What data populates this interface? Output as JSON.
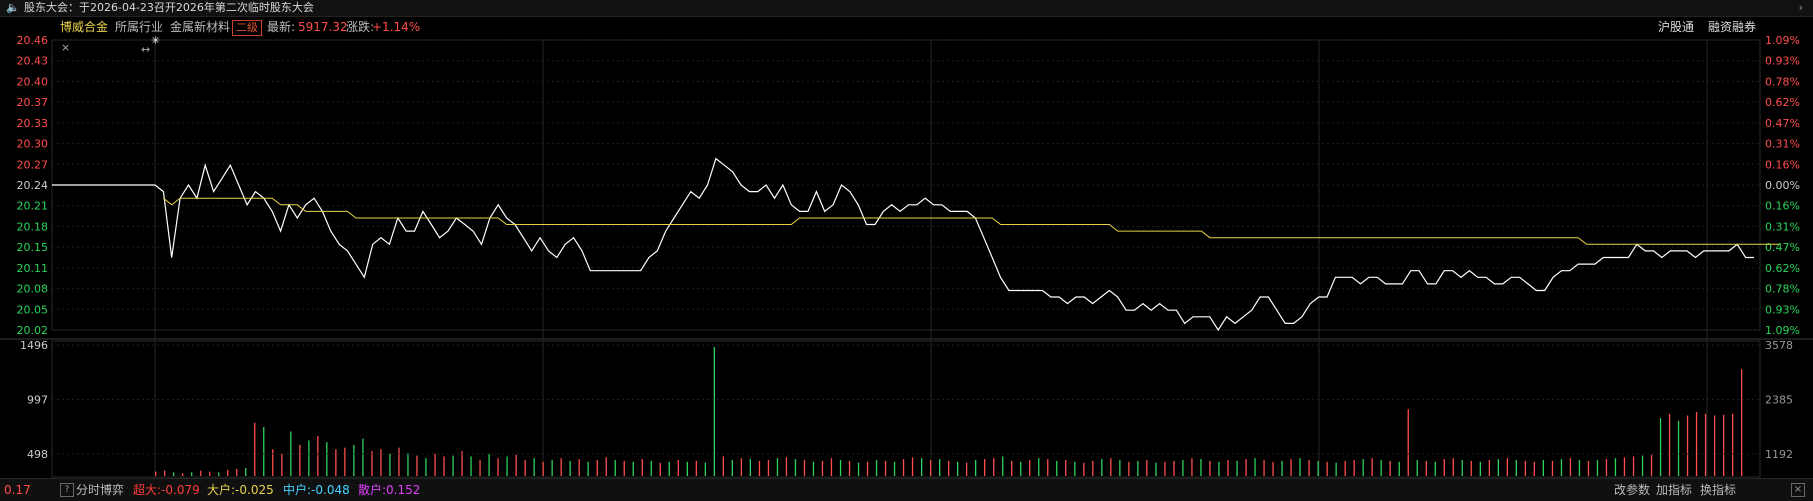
{
  "notice": {
    "icon": "speaker-icon",
    "text": "股东大会：于2026-04-23召开2026年第二次临时股东大会",
    "more_icon": "chevron-right-icon"
  },
  "info_bar": {
    "stock_name": "博威合金",
    "industry_label": "所属行业",
    "sector": "金属新材料",
    "sector_grade": "二级",
    "last_label": "最新:",
    "last_value": "5917.32",
    "change_label": "涨跌:",
    "change_value": "+1.14%",
    "link_1": "沪股通",
    "link_2": "融资融券"
  },
  "chart_data": [
    {
      "type": "line",
      "title": "",
      "y_left_ticks": [
        "20.46",
        "20.43",
        "20.40",
        "20.37",
        "20.33",
        "20.30",
        "20.27",
        "20.24",
        "20.21",
        "20.18",
        "20.15",
        "20.11",
        "20.08",
        "20.05",
        "20.02"
      ],
      "y_right_ticks": [
        "1.09%",
        "0.93%",
        "0.78%",
        "0.62%",
        "0.47%",
        "0.31%",
        "0.16%",
        "0.00%",
        "0.16%",
        "0.31%",
        "0.47%",
        "0.62%",
        "0.78%",
        "0.93%",
        "1.09%"
      ],
      "ylim": [
        20.02,
        20.46
      ],
      "reference_price": 20.24,
      "series": [
        {
          "color": "#ffffff",
          "values": [
            20.24,
            20.24,
            20.24,
            20.24,
            20.24,
            20.24,
            20.24,
            20.24,
            20.24,
            20.24,
            20.24,
            20.24,
            20.24,
            20.24,
            20.24,
            20.24,
            20.24,
            20.23,
            20.13,
            20.22,
            20.24,
            20.22,
            20.27,
            20.23,
            20.25,
            20.27,
            20.24,
            20.21,
            20.23,
            20.22,
            20.2,
            20.17,
            20.21,
            20.19,
            20.21,
            20.22,
            20.2,
            20.17,
            20.15,
            20.14,
            20.12,
            20.1,
            20.15,
            20.16,
            20.15,
            20.19,
            20.17,
            20.17,
            20.2,
            20.18,
            20.16,
            20.17,
            20.19,
            20.18,
            20.17,
            20.15,
            20.19,
            20.21,
            20.19,
            20.18,
            20.16,
            20.14,
            20.16,
            20.14,
            20.13,
            20.15,
            20.16,
            20.14,
            20.11,
            20.11,
            20.11,
            20.11,
            20.11,
            20.11,
            20.11,
            20.13,
            20.14,
            20.17,
            20.19,
            20.21,
            20.23,
            20.22,
            20.24,
            20.28,
            20.27,
            20.26,
            20.24,
            20.23,
            20.23,
            20.24,
            20.22,
            20.24,
            20.21,
            20.2,
            20.2,
            20.23,
            20.2,
            20.21,
            20.24,
            20.23,
            20.21,
            20.18,
            20.18,
            20.2,
            20.21,
            20.2,
            20.21,
            20.21,
            20.22,
            20.21,
            20.21,
            20.2,
            20.2,
            20.2,
            20.19,
            20.16,
            20.13,
            20.1,
            20.08,
            20.08,
            20.08,
            20.08,
            20.08,
            20.07,
            20.07,
            20.06,
            20.07,
            20.07,
            20.06,
            20.07,
            20.08,
            20.07,
            20.05,
            20.05,
            20.06,
            20.05,
            20.06,
            20.05,
            20.05,
            20.03,
            20.04,
            20.04,
            20.04,
            20.02,
            20.04,
            20.03,
            20.04,
            20.05,
            20.07,
            20.07,
            20.05,
            20.03,
            20.03,
            20.04,
            20.06,
            20.07,
            20.07,
            20.1,
            20.1,
            20.1,
            20.09,
            20.1,
            20.1,
            20.09,
            20.09,
            20.09,
            20.11,
            20.11,
            20.09,
            20.09,
            20.11,
            20.11,
            20.1,
            20.11,
            20.1,
            20.1,
            20.09,
            20.09,
            20.1,
            20.1,
            20.09,
            20.08,
            20.08,
            20.1,
            20.11,
            20.11,
            20.12,
            20.12,
            20.12,
            20.13,
            20.13,
            20.13,
            20.13,
            20.15,
            20.14,
            20.14,
            20.13,
            20.14,
            20.14,
            20.14,
            20.13,
            20.14,
            20.14,
            20.14,
            20.14,
            20.15,
            20.13,
            20.13
          ]
        },
        {
          "color": "#e8d24a",
          "values": [
            null,
            null,
            null,
            null,
            null,
            null,
            null,
            null,
            null,
            null,
            null,
            null,
            null,
            null,
            null,
            null,
            null,
            20.22,
            20.21,
            20.22,
            20.22,
            20.22,
            20.22,
            20.22,
            20.22,
            20.22,
            20.22,
            20.22,
            20.22,
            20.22,
            20.22,
            20.21,
            20.21,
            20.21,
            20.2,
            20.2,
            20.2,
            20.2,
            20.2,
            20.2,
            20.19,
            20.19,
            20.19,
            20.19,
            20.19,
            20.19,
            20.19,
            20.19,
            20.19,
            20.19,
            20.19,
            20.19,
            20.19,
            20.19,
            20.19,
            20.19,
            20.19,
            20.19,
            20.18,
            20.18,
            20.18,
            20.18,
            20.18,
            20.18,
            20.18,
            20.18,
            20.18,
            20.18,
            20.18,
            20.18,
            20.18,
            20.18,
            20.18,
            20.18,
            20.18,
            20.18,
            20.18,
            20.18,
            20.18,
            20.18,
            20.18,
            20.18,
            20.18,
            20.18,
            20.18,
            20.18,
            20.18,
            20.18,
            20.18,
            20.18,
            20.18,
            20.18,
            20.18,
            20.19,
            20.19,
            20.19,
            20.19,
            20.19,
            20.19,
            20.19,
            20.19,
            20.19,
            20.19,
            20.19,
            20.19,
            20.19,
            20.19,
            20.19,
            20.19,
            20.19,
            20.19,
            20.19,
            20.19,
            20.19,
            20.19,
            20.19,
            20.19,
            20.18,
            20.18,
            20.18,
            20.18,
            20.18,
            20.18,
            20.18,
            20.18,
            20.18,
            20.18,
            20.18,
            20.18,
            20.18,
            20.18,
            20.17,
            20.17,
            20.17,
            20.17,
            20.17,
            20.17,
            20.17,
            20.17,
            20.17,
            20.17,
            20.17,
            20.16,
            20.16,
            20.16,
            20.16,
            20.16,
            20.16,
            20.16,
            20.16,
            20.16,
            20.16,
            20.16,
            20.16,
            20.16,
            20.16,
            20.16,
            20.16,
            20.16,
            20.16,
            20.16,
            20.16,
            20.16,
            20.16,
            20.16,
            20.16,
            20.16,
            20.16,
            20.16,
            20.16,
            20.16,
            20.16,
            20.16,
            20.16,
            20.16,
            20.16,
            20.16,
            20.16,
            20.16,
            20.16,
            20.16,
            20.16,
            20.16,
            20.16,
            20.16,
            20.16,
            20.16,
            20.15,
            20.15,
            20.15,
            20.15,
            20.15,
            20.15,
            20.15,
            20.15,
            20.15,
            20.15,
            20.15,
            20.15,
            20.15,
            20.15,
            20.15,
            20.15,
            20.15,
            20.15,
            20.15,
            20.15,
            20.15,
            20.15,
            20.15,
            20.15
          ]
        }
      ]
    },
    {
      "type": "bar",
      "title": "",
      "y_left_ticks": [
        "1496",
        "997",
        "498"
      ],
      "y_right_ticks": [
        "3578",
        "2385",
        "1192"
      ],
      "ylim": [
        0,
        1496
      ],
      "bar_colors": {
        "up": "#ff4d4d",
        "down": "#2bd45b"
      },
      "values": [
        50,
        60,
        40,
        30,
        40,
        60,
        50,
        40,
        70,
        80,
        90,
        600,
        550,
        300,
        250,
        500,
        350,
        400,
        450,
        380,
        300,
        320,
        350,
        420,
        280,
        300,
        250,
        320,
        260,
        230,
        200,
        250,
        220,
        230,
        280,
        220,
        180,
        250,
        200,
        220,
        240,
        180,
        200,
        160,
        180,
        200,
        170,
        190,
        160,
        180,
        210,
        180,
        170,
        160,
        190,
        170,
        150,
        160,
        180,
        160,
        170,
        150,
        1450,
        220,
        180,
        200,
        190,
        170,
        180,
        200,
        210,
        190,
        180,
        160,
        170,
        200,
        180,
        170,
        150,
        160,
        180,
        170,
        160,
        190,
        210,
        200,
        180,
        190,
        170,
        160,
        150,
        180,
        190,
        200,
        220,
        170,
        160,
        180,
        200,
        190,
        170,
        180,
        160,
        150,
        170,
        190,
        200,
        180,
        160,
        170,
        180,
        150,
        160,
        170,
        180,
        200,
        190,
        170,
        160,
        180,
        170,
        190,
        200,
        180,
        160,
        170,
        190,
        200,
        180,
        170,
        160,
        150,
        170,
        180,
        190,
        200,
        180,
        170,
        160,
        750,
        180,
        170,
        160,
        190,
        200,
        180,
        170,
        160,
        180,
        190,
        200,
        180,
        170,
        160,
        180,
        170,
        190,
        200,
        180,
        170,
        180,
        190,
        200,
        210,
        220,
        230,
        240,
        650,
        700,
        620,
        680,
        720,
        700,
        680,
        690,
        700,
        1200
      ],
      "direction": [
        "up",
        "up",
        "down",
        "up",
        "down",
        "up",
        "up",
        "down",
        "up",
        "up",
        "down",
        "up",
        "down",
        "up",
        "up",
        "down",
        "up",
        "down",
        "up",
        "down",
        "up",
        "up",
        "down",
        "down",
        "up",
        "up",
        "down",
        "up",
        "down",
        "up",
        "down",
        "up",
        "up",
        "down",
        "up",
        "down",
        "up",
        "down",
        "up",
        "down",
        "up",
        "up",
        "down",
        "up",
        "down",
        "up",
        "down",
        "up",
        "down",
        "up",
        "up",
        "down",
        "up",
        "down",
        "up",
        "down",
        "up",
        "down",
        "up",
        "down",
        "up",
        "down",
        "down",
        "up",
        "down",
        "up",
        "down",
        "up",
        "up",
        "down",
        "up",
        "down",
        "up",
        "down",
        "up",
        "up",
        "down",
        "up",
        "down",
        "up",
        "down",
        "up",
        "down",
        "up",
        "up",
        "down",
        "up",
        "down",
        "up",
        "down",
        "up",
        "down",
        "up",
        "up",
        "down",
        "up",
        "down",
        "up",
        "down",
        "up",
        "down",
        "up",
        "down",
        "up",
        "up",
        "down",
        "up",
        "down",
        "up",
        "down",
        "up",
        "down",
        "up",
        "up",
        "down",
        "up",
        "down",
        "up",
        "down",
        "up",
        "down",
        "up",
        "down",
        "up",
        "up",
        "down",
        "up",
        "down",
        "up",
        "down",
        "up",
        "down",
        "up",
        "up",
        "down",
        "up",
        "down",
        "up",
        "down",
        "up",
        "down",
        "up",
        "down",
        "up",
        "up",
        "down",
        "up",
        "down",
        "up",
        "down",
        "up",
        "down",
        "up",
        "up",
        "down",
        "up",
        "down",
        "up",
        "down",
        "up",
        "down",
        "up",
        "down",
        "up",
        "up",
        "down",
        "up",
        "down",
        "up",
        "down",
        "up",
        "up",
        "up",
        "up",
        "up",
        "up",
        "up",
        "up",
        "up",
        "up"
      ]
    }
  ],
  "bottom_bar": {
    "help": "?",
    "tab": "分时博弈",
    "big": "超大:-0.079",
    "large": "大户:-0.025",
    "mid": "中户:-0.048",
    "small": "散户:0.152",
    "btn_params": "改参数",
    "btn_add": "加指标",
    "btn_switch": "换指标",
    "close": "×"
  },
  "misc": {
    "expand_icon": "↔",
    "cursor_icon": "✳",
    "close_chart_icon": "×",
    "corner_value": "0.17"
  }
}
